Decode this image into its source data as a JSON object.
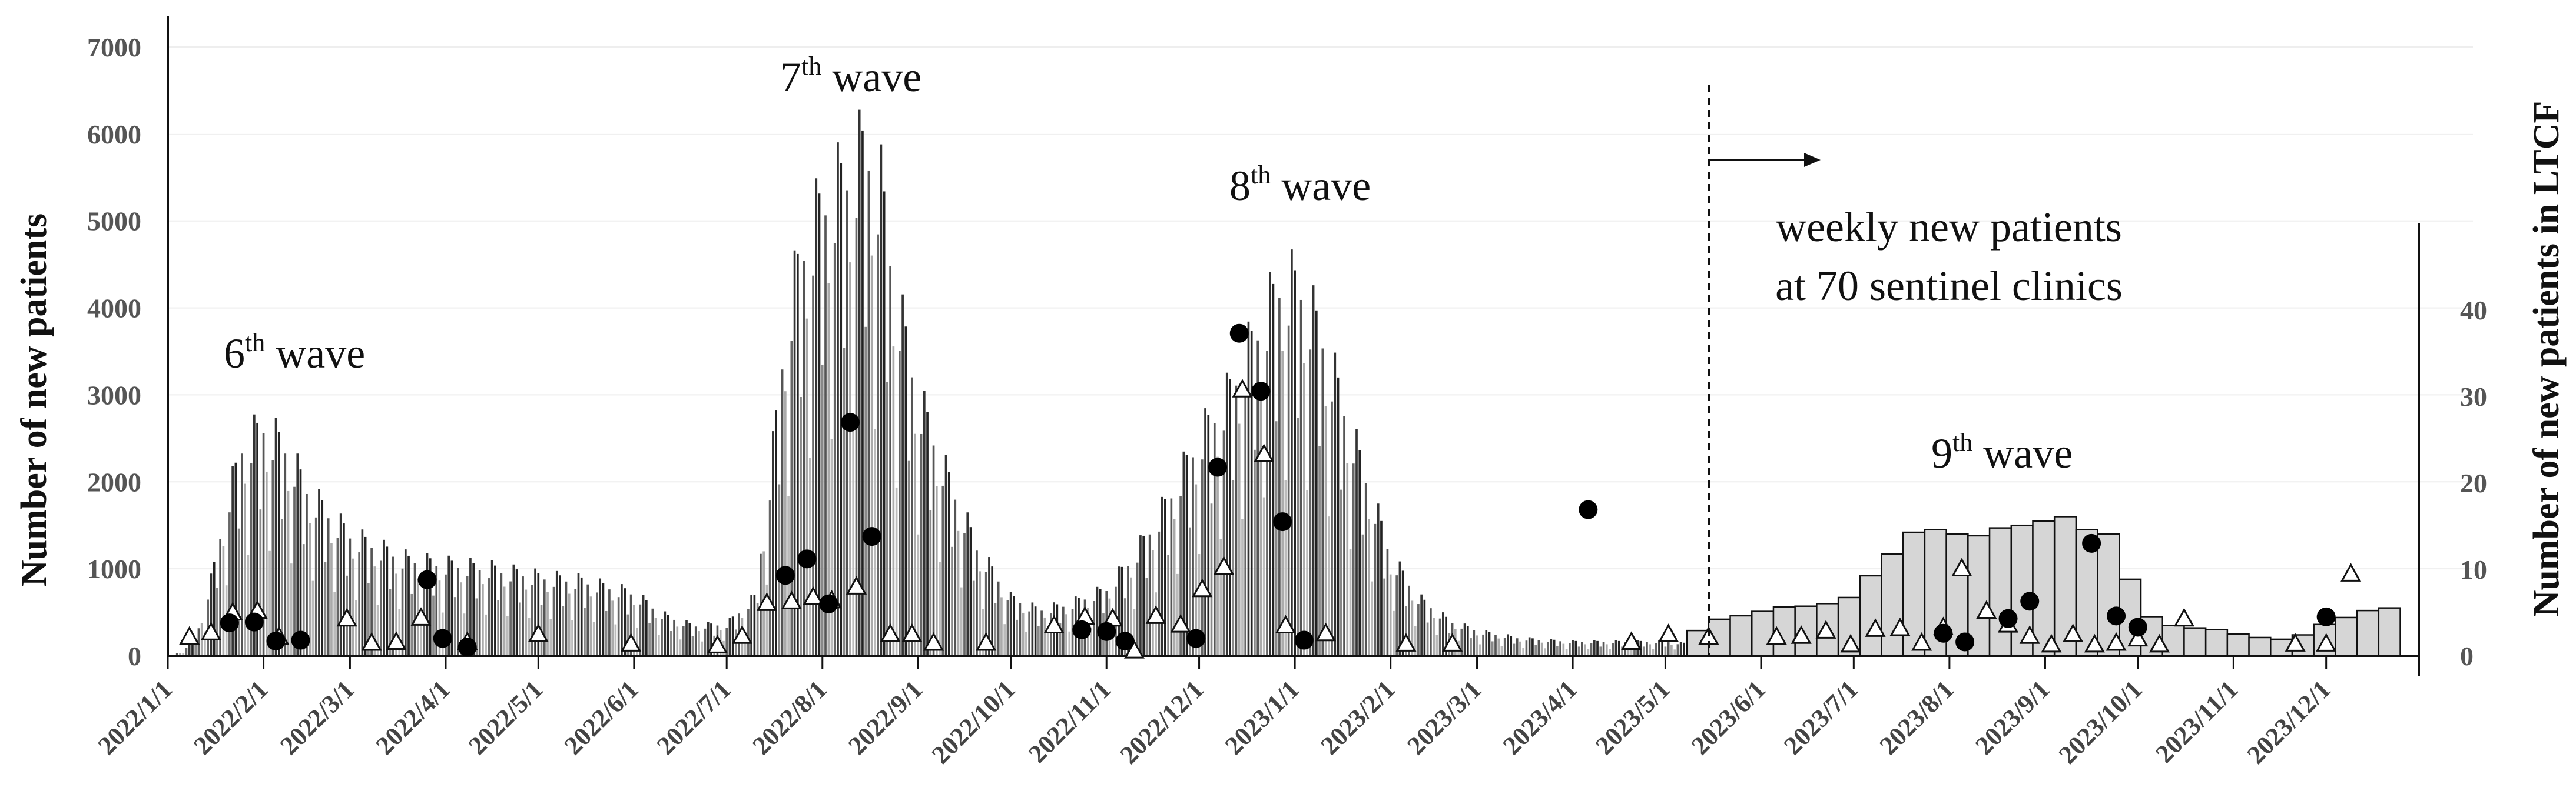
{
  "chart_data": {
    "type": "bar",
    "left_axis": {
      "label": "Number of new patients",
      "ylim": [
        0,
        7000
      ],
      "ticks": [
        "0",
        "1000",
        "2000",
        "3000",
        "4000",
        "5000",
        "6000",
        "7000"
      ]
    },
    "right_axis": {
      "label": "Number of new patients in LTCF",
      "ylim": [
        0,
        50
      ],
      "ticks": [
        "0",
        "10",
        "20",
        "30",
        "40"
      ]
    },
    "x_axis": {
      "tick_labels": [
        "2022/1/1",
        "2022/2/1",
        "2022/3/1",
        "2022/4/1",
        "2022/5/1",
        "2022/6/1",
        "2022/7/1",
        "2022/8/1",
        "2022/9/1",
        "2022/10/1",
        "2022/11/1",
        "2022/12/1",
        "2023/1/1",
        "2023/2/1",
        "2023/3/1",
        "2023/4/1",
        "2023/5/1",
        "2023/6/1",
        "2023/7/1",
        "2023/8/1",
        "2023/9/1",
        "2023/10/1",
        "2023/11/1",
        "2023/12/1"
      ]
    },
    "annotations": {
      "wave6": {
        "pre": "6",
        "sup": "th",
        "post": " wave"
      },
      "wave7": {
        "pre": "7",
        "sup": "th",
        "post": " wave"
      },
      "wave8": {
        "pre": "8",
        "sup": "th",
        "post": " wave"
      },
      "wave9": {
        "pre": "9",
        "sup": "th",
        "post": " wave"
      },
      "weekly_line1": "weekly new patients",
      "weekly_line2": "at 70 sentinel clinics"
    },
    "daily_envelope": {
      "description": "daily new patients (left axis), thin bars",
      "points": [
        [
          "2022/1/1",
          0
        ],
        [
          "2022/1/5",
          40
        ],
        [
          "2022/1/10",
          200
        ],
        [
          "2022/1/15",
          900
        ],
        [
          "2022/1/20",
          1800
        ],
        [
          "2022/1/25",
          2500
        ],
        [
          "2022/2/1",
          2750
        ],
        [
          "2022/2/8",
          2500
        ],
        [
          "2022/2/15",
          2000
        ],
        [
          "2022/2/22",
          1700
        ],
        [
          "2022/3/1",
          1450
        ],
        [
          "2022/3/10",
          1300
        ],
        [
          "2022/3/20",
          1150
        ],
        [
          "2022/4/1",
          1100
        ],
        [
          "2022/4/15",
          1050
        ],
        [
          "2022/5/1",
          950
        ],
        [
          "2022/5/15",
          900
        ],
        [
          "2022/6/1",
          750
        ],
        [
          "2022/6/10",
          500
        ],
        [
          "2022/6/20",
          360
        ],
        [
          "2022/7/1",
          380
        ],
        [
          "2022/7/10",
          700
        ],
        [
          "2022/7/15",
          2100
        ],
        [
          "2022/7/20",
          3900
        ],
        [
          "2022/7/25",
          4800
        ],
        [
          "2022/8/1",
          5400
        ],
        [
          "2022/8/10",
          5800
        ],
        [
          "2022/8/15",
          6100
        ],
        [
          "2022/8/20",
          5600
        ],
        [
          "2022/8/25",
          4300
        ],
        [
          "2022/9/1",
          3100
        ],
        [
          "2022/9/10",
          2200
        ],
        [
          "2022/9/20",
          1300
        ],
        [
          "2022/10/1",
          700
        ],
        [
          "2022/10/10",
          550
        ],
        [
          "2022/10/20",
          620
        ],
        [
          "2022/11/1",
          800
        ],
        [
          "2022/11/10",
          1200
        ],
        [
          "2022/11/20",
          1800
        ],
        [
          "2022/12/1",
          2600
        ],
        [
          "2022/12/10",
          3100
        ],
        [
          "2022/12/20",
          3900
        ],
        [
          "2022/12/28",
          4500
        ],
        [
          "2023/1/3",
          4400
        ],
        [
          "2023/1/10",
          3800
        ],
        [
          "2023/1/20",
          2600
        ],
        [
          "2023/2/1",
          1200
        ],
        [
          "2023/2/10",
          700
        ],
        [
          "2023/2/20",
          420
        ],
        [
          "2023/3/1",
          300
        ],
        [
          "2023/3/15",
          210
        ],
        [
          "2023/4/1",
          170
        ],
        [
          "2023/4/15",
          170
        ],
        [
          "2023/5/1",
          170
        ],
        [
          "2023/5/7",
          150
        ]
      ]
    },
    "weekly_bars": {
      "description": "weekly new patients at 70 sentinel clinics (left axis)",
      "start": "2023/5/8",
      "values": [
        290,
        420,
        460,
        510,
        560,
        570,
        600,
        670,
        920,
        1170,
        1420,
        1450,
        1400,
        1380,
        1470,
        1500,
        1550,
        1600,
        1450,
        1400,
        880,
        450,
        350,
        320,
        300,
        250,
        210,
        190,
        240,
        360,
        440,
        520,
        550
      ]
    },
    "ltcf_filled_circles": {
      "description": "filled circles (right axis)",
      "points": [
        [
          "2022/1/21",
          3.8
        ],
        [
          "2022/1/29",
          3.9
        ],
        [
          "2022/2/5",
          1.7
        ],
        [
          "2022/2/13",
          1.8
        ],
        [
          "2022/3/26",
          8.8
        ],
        [
          "2022/3/31",
          2.0
        ],
        [
          "2022/4/8",
          1.0
        ],
        [
          "2022/7/20",
          9.3
        ],
        [
          "2022/7/27",
          11.2
        ],
        [
          "2022/8/3",
          6.0
        ],
        [
          "2022/8/10",
          27.0
        ],
        [
          "2022/8/17",
          13.8
        ],
        [
          "2022/10/24",
          3.0
        ],
        [
          "2022/11/1",
          2.8
        ],
        [
          "2022/11/7",
          1.7
        ],
        [
          "2022/11/30",
          2.0
        ],
        [
          "2022/12/7",
          21.8
        ],
        [
          "2022/12/14",
          37.3
        ],
        [
          "2022/12/21",
          30.6
        ],
        [
          "2022/12/28",
          15.5
        ],
        [
          "2023/1/4",
          1.8
        ],
        [
          "2023/4/6",
          16.9
        ],
        [
          "2023/7/30",
          2.6
        ],
        [
          "2023/8/6",
          1.6
        ],
        [
          "2023/8/20",
          4.3
        ],
        [
          "2023/8/27",
          6.3
        ],
        [
          "2023/9/16",
          13.0
        ],
        [
          "2023/9/24",
          4.6
        ],
        [
          "2023/10/1",
          3.3
        ],
        [
          "2023/12/1",
          4.5
        ]
      ]
    },
    "ltcf_open_triangles": {
      "description": "open triangles (right axis)",
      "points": [
        [
          "2022/1/8",
          2.2
        ],
        [
          "2022/1/15",
          2.7
        ],
        [
          "2022/1/22",
          5.0
        ],
        [
          "2022/1/30",
          5.2
        ],
        [
          "2022/2/6",
          2.2
        ],
        [
          "2022/2/28",
          4.3
        ],
        [
          "2022/3/8",
          1.5
        ],
        [
          "2022/3/16",
          1.6
        ],
        [
          "2022/3/24",
          4.4
        ],
        [
          "2022/4/8",
          1.6
        ],
        [
          "2022/5/1",
          2.5
        ],
        [
          "2022/5/31",
          1.4
        ],
        [
          "2022/6/28",
          1.2
        ],
        [
          "2022/7/6",
          2.3
        ],
        [
          "2022/7/14",
          6.1
        ],
        [
          "2022/7/22",
          6.3
        ],
        [
          "2022/7/29",
          6.8
        ],
        [
          "2022/8/4",
          6.4
        ],
        [
          "2022/8/12",
          8.0
        ],
        [
          "2022/8/23",
          2.5
        ],
        [
          "2022/8/30",
          2.5
        ],
        [
          "2022/9/6",
          1.5
        ],
        [
          "2022/9/23",
          1.5
        ],
        [
          "2022/10/15",
          3.5
        ],
        [
          "2022/10/25",
          4.5
        ],
        [
          "2022/11/3",
          4.3
        ],
        [
          "2022/11/10",
          0.6
        ],
        [
          "2022/11/17",
          4.6
        ],
        [
          "2022/11/25",
          3.6
        ],
        [
          "2022/12/2",
          7.7
        ],
        [
          "2022/12/9",
          10.3
        ],
        [
          "2022/12/15",
          30.8
        ],
        [
          "2022/12/22",
          23.3
        ],
        [
          "2022/12/29",
          3.5
        ],
        [
          "2023/1/11",
          2.6
        ],
        [
          "2023/2/6",
          1.4
        ],
        [
          "2023/2/21",
          1.4
        ],
        [
          "2023/4/20",
          1.6
        ],
        [
          "2023/5/2",
          2.5
        ],
        [
          "2023/5/15",
          2.2
        ],
        [
          "2023/6/6",
          2.2
        ],
        [
          "2023/6/14",
          2.3
        ],
        [
          "2023/6/22",
          2.9
        ],
        [
          "2023/6/30",
          1.3
        ],
        [
          "2023/7/8",
          3.1
        ],
        [
          "2023/7/16",
          3.2
        ],
        [
          "2023/7/23",
          1.5
        ],
        [
          "2023/7/30",
          3.3
        ],
        [
          "2023/8/5",
          10.1
        ],
        [
          "2023/8/13",
          5.2
        ],
        [
          "2023/8/20",
          3.6
        ],
        [
          "2023/8/27",
          2.3
        ],
        [
          "2023/9/3",
          1.3
        ],
        [
          "2023/9/10",
          2.5
        ],
        [
          "2023/9/17",
          1.3
        ],
        [
          "2023/9/24",
          1.5
        ],
        [
          "2023/10/1",
          2.0
        ],
        [
          "2023/10/8",
          1.3
        ],
        [
          "2023/10/16",
          4.3
        ],
        [
          "2023/11/21",
          1.4
        ],
        [
          "2023/12/1",
          1.4
        ],
        [
          "2023/12/9",
          9.5
        ]
      ]
    }
  }
}
